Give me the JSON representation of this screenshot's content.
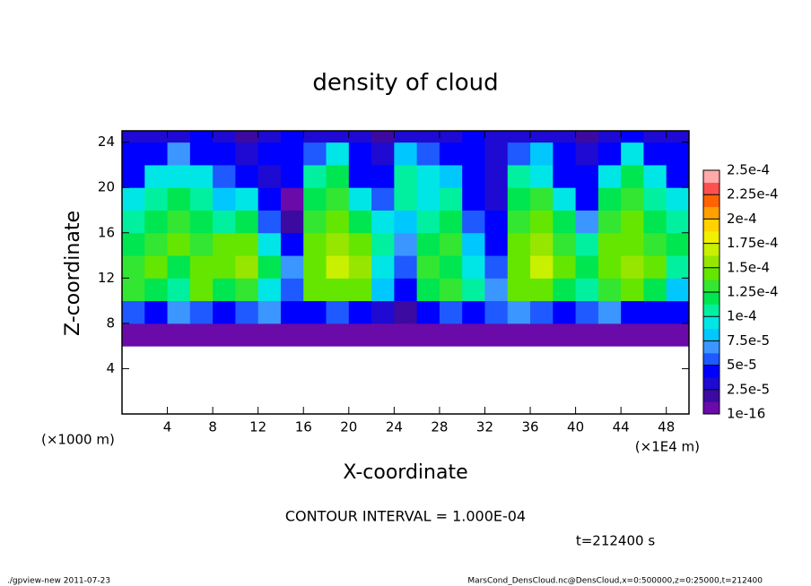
{
  "chart_data": {
    "type": "heatmap",
    "title": "density of cloud",
    "xlabel": "X-coordinate",
    "ylabel": "Z-coordinate",
    "xunit": "(×1E4 m)",
    "yunit": "(×1000 m)",
    "xlim": [
      0,
      50
    ],
    "ylim": [
      0,
      25
    ],
    "xticks": [
      4,
      8,
      12,
      16,
      20,
      24,
      28,
      32,
      36,
      40,
      44,
      48
    ],
    "yticks": [
      4,
      8,
      12,
      16,
      20,
      24
    ],
    "x": [
      0,
      2,
      4,
      6,
      8,
      10,
      12,
      14,
      16,
      18,
      20,
      22,
      24,
      26,
      28,
      30,
      32,
      34,
      36,
      38,
      40,
      42,
      44,
      46,
      48,
      50
    ],
    "z": [
      6,
      8,
      10,
      12,
      14,
      16,
      18,
      20,
      22,
      24,
      25
    ],
    "values": [
      [
        1e-05,
        1e-05,
        1.2e-05,
        1e-05,
        1e-05,
        1e-05,
        1e-05,
        1.2e-05,
        1e-05,
        1e-05,
        1e-05,
        1e-05,
        5e-06,
        1e-05,
        1e-05,
        1e-05,
        1.2e-05,
        1e-05,
        1e-05,
        1e-05,
        1e-05,
        1.2e-05,
        1e-05,
        1e-05,
        1e-05
      ],
      [
        6e-05,
        5e-05,
        7e-05,
        6e-05,
        5e-05,
        6e-05,
        7e-05,
        5e-05,
        4e-05,
        6e-05,
        5e-05,
        3e-05,
        2e-05,
        4e-05,
        6e-05,
        5e-05,
        6e-05,
        7e-05,
        6e-05,
        5e-05,
        6e-05,
        7e-05,
        5e-05,
        4e-05,
        5e-05
      ],
      [
        0.00013,
        0.00012,
        0.00011,
        0.00014,
        0.00012,
        0.00013,
        9e-05,
        6e-05,
        0.00014,
        0.00015,
        0.00014,
        8e-05,
        5e-05,
        0.00012,
        0.00013,
        0.00011,
        7e-05,
        0.00014,
        0.00015,
        0.00012,
        0.00011,
        0.00013,
        0.00014,
        0.00012,
        8e-05
      ],
      [
        0.00013,
        0.00014,
        0.00012,
        0.00015,
        0.00014,
        0.00016,
        0.00012,
        7e-05,
        0.00015,
        0.00017,
        0.00016,
        0.0001,
        6e-05,
        0.00013,
        0.00012,
        0.0001,
        6e-05,
        0.00015,
        0.00017,
        0.00014,
        0.00012,
        0.00015,
        0.00016,
        0.00014,
        0.00011
      ],
      [
        0.00012,
        0.00013,
        0.00014,
        0.00013,
        0.00015,
        0.00014,
        0.0001,
        5e-05,
        0.00014,
        0.00016,
        0.00015,
        0.00011,
        7e-05,
        0.00012,
        0.00013,
        8e-05,
        5e-05,
        0.00014,
        0.00016,
        0.00013,
        0.00011,
        0.00014,
        0.00015,
        0.00013,
        0.00012
      ],
      [
        0.00011,
        0.00012,
        0.00013,
        0.00012,
        0.00011,
        0.00012,
        6e-05,
        2e-05,
        0.00013,
        0.00014,
        0.00012,
        0.0001,
        8e-05,
        0.00011,
        0.00012,
        6e-05,
        4e-05,
        0.00013,
        0.00014,
        0.00012,
        7e-05,
        0.00013,
        0.00014,
        0.00012,
        0.00011
      ],
      [
        9e-05,
        0.00011,
        0.00012,
        0.00011,
        8e-05,
        0.0001,
        5e-05,
        1e-05,
        0.00012,
        0.00013,
        9e-05,
        6e-05,
        0.00011,
        0.0001,
        0.00011,
        5e-05,
        3e-05,
        0.00012,
        0.00013,
        0.0001,
        5e-05,
        0.00012,
        0.00013,
        0.00011,
        9e-05
      ],
      [
        5e-05,
        9e-05,
        0.0001,
        9e-05,
        6e-05,
        4e-05,
        3e-05,
        5e-05,
        0.00011,
        0.00012,
        5e-05,
        4e-05,
        0.00011,
        0.0001,
        8e-05,
        4e-05,
        3e-05,
        0.00011,
        0.0001,
        5e-05,
        4e-05,
        0.0001,
        0.00012,
        0.0001,
        5e-05
      ],
      [
        4e-05,
        5e-05,
        7e-05,
        5e-05,
        4e-05,
        3e-05,
        4e-05,
        5e-05,
        6e-05,
        0.0001,
        4e-05,
        3e-05,
        8e-05,
        6e-05,
        5e-05,
        4e-05,
        3e-05,
        6e-05,
        8e-05,
        4e-05,
        3e-05,
        5e-05,
        9e-05,
        5e-05,
        4e-05
      ],
      [
        3e-05,
        3.5e-05,
        3e-05,
        4e-05,
        3e-05,
        2.5e-05,
        3e-05,
        4e-05,
        3e-05,
        3.5e-05,
        3e-05,
        2.5e-05,
        3e-05,
        3.5e-05,
        3e-05,
        4e-05,
        3e-05,
        3e-05,
        3.5e-05,
        3e-05,
        2.5e-05,
        3e-05,
        4e-05,
        3e-05,
        3e-05
      ]
    ],
    "colorbar_ticks": [
      1e-16,
      {
        "value": 2.5e-05,
        "label": "2.5e-5"
      },
      {
        "value": 5e-05,
        "label": "5e-5"
      },
      {
        "value": 7.5e-05,
        "label": "7.5e-5"
      },
      {
        "value": 0.0001,
        "label": "1e-4"
      },
      {
        "value": 0.000125,
        "label": "1.25e-4"
      },
      {
        "value": 0.00015,
        "label": "1.5e-4"
      },
      {
        "value": 0.000175,
        "label": "1.75e-4"
      },
      {
        "value": 0.0002,
        "label": "2e-4"
      },
      {
        "value": 0.000225,
        "label": "2.25e-4"
      },
      {
        "value": 0.00025,
        "label": "2.5e-4"
      }
    ],
    "colors": [
      "#6a0aa8",
      "#3c0aa0",
      "#1e0ad2",
      "#0000ff",
      "#1e5aff",
      "#3c96ff",
      "#00c8ff",
      "#00e6e6",
      "#00f0a0",
      "#00e650",
      "#32e632",
      "#64e600",
      "#96e600",
      "#c8f000",
      "#f0f000",
      "#ffd200",
      "#ffa000",
      "#ff6400",
      "#ff5050",
      "#ffaaaa"
    ],
    "annotation": "CONTOUR INTERVAL = 1.000E-04",
    "time_label": "t=212400 s",
    "footer_left": "./gpview-new  2011-07-23",
    "footer_right": "MarsCond_DensCloud.nc@DensCloud,x=0:500000,z=0:25000,t=212400"
  }
}
